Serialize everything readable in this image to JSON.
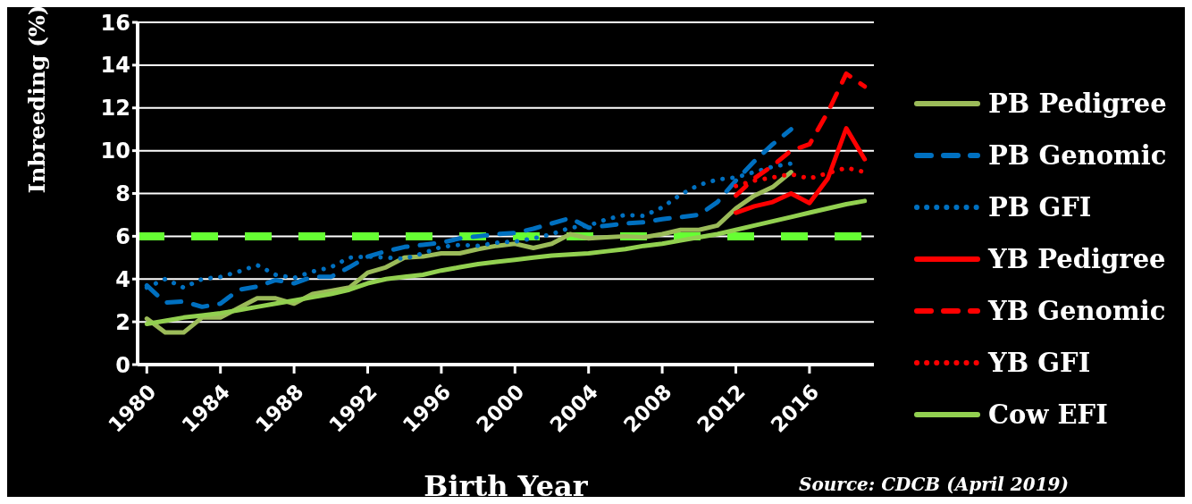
{
  "chart_data": {
    "type": "line",
    "xlabel": "Birth Year",
    "ylabel": "Inbreeding (%)",
    "annotations": [
      "Source: CDCB (April 2019)"
    ],
    "x": [
      1980,
      1981,
      1982,
      1983,
      1984,
      1985,
      1986,
      1987,
      1988,
      1989,
      1990,
      1991,
      1992,
      1993,
      1994,
      1995,
      1996,
      1997,
      1998,
      1999,
      2000,
      2001,
      2002,
      2003,
      2004,
      2005,
      2006,
      2007,
      2008,
      2009,
      2010,
      2011,
      2012,
      2013,
      2014,
      2015,
      2016,
      2017,
      2018,
      2019
    ],
    "xlim": [
      1979.5,
      2019.5
    ],
    "xticks": [
      1980,
      1984,
      1988,
      1992,
      1996,
      2000,
      2004,
      2008,
      2012,
      2016
    ],
    "ylim": [
      0,
      16
    ],
    "yticks": [
      0,
      2,
      4,
      6,
      8,
      10,
      12,
      14,
      16
    ],
    "grid": "y",
    "legend": "right",
    "marker": "none",
    "ref_lines": [
      {
        "axis": "y",
        "value": 6,
        "color": "#66ff33",
        "line_style": "dashed"
      }
    ],
    "series": [
      {
        "name": "PB Pedigree",
        "color": "#9bbb59",
        "line_style": "solid",
        "values": [
          2.15,
          1.5,
          1.5,
          2.2,
          2.2,
          2.65,
          3.1,
          3.1,
          2.85,
          3.3,
          3.45,
          3.6,
          4.3,
          4.55,
          5.0,
          5.05,
          5.2,
          5.2,
          5.4,
          5.55,
          5.65,
          5.45,
          5.65,
          6.1,
          5.9,
          5.95,
          6.0,
          5.95,
          6.1,
          6.3,
          6.3,
          6.5,
          7.3,
          7.9,
          8.3,
          9.0,
          null,
          null,
          null,
          null
        ]
      },
      {
        "name": "PB Genomic",
        "color": "#0070c0",
        "line_style": "dashed",
        "values": [
          3.7,
          2.9,
          2.95,
          2.7,
          2.85,
          3.5,
          3.65,
          3.95,
          3.8,
          4.1,
          4.1,
          4.55,
          5.05,
          5.3,
          5.5,
          5.6,
          5.7,
          5.9,
          6.0,
          6.1,
          6.15,
          6.35,
          6.6,
          6.85,
          6.4,
          6.5,
          6.6,
          6.65,
          6.8,
          6.9,
          7.0,
          7.6,
          8.6,
          9.5,
          10.3,
          11.0,
          null,
          null,
          null,
          null
        ]
      },
      {
        "name": "PB GFI",
        "color": "#0070c0",
        "line_style": "dotted",
        "values": [
          3.6,
          4.0,
          3.6,
          4.0,
          4.1,
          4.35,
          4.65,
          4.2,
          4.05,
          4.35,
          4.55,
          5.0,
          5.05,
          5.0,
          4.95,
          5.2,
          5.5,
          5.6,
          5.55,
          5.7,
          5.75,
          5.9,
          6.1,
          6.4,
          6.5,
          6.8,
          7.0,
          6.95,
          7.35,
          7.95,
          8.4,
          8.65,
          8.75,
          9.0,
          9.25,
          9.4,
          null,
          null,
          null,
          null
        ]
      },
      {
        "name": "YB Pedigree",
        "color": "#ff0000",
        "line_style": "solid",
        "values": [
          null,
          null,
          null,
          null,
          null,
          null,
          null,
          null,
          null,
          null,
          null,
          null,
          null,
          null,
          null,
          null,
          null,
          null,
          null,
          null,
          null,
          null,
          null,
          null,
          null,
          null,
          null,
          null,
          null,
          null,
          null,
          null,
          7.1,
          7.4,
          7.6,
          8.0,
          7.55,
          8.7,
          11.05,
          9.6
        ]
      },
      {
        "name": "YB Genomic",
        "color": "#ff0000",
        "line_style": "dashed",
        "values": [
          null,
          null,
          null,
          null,
          null,
          null,
          null,
          null,
          null,
          null,
          null,
          null,
          null,
          null,
          null,
          null,
          null,
          null,
          null,
          null,
          null,
          null,
          null,
          null,
          null,
          null,
          null,
          null,
          null,
          null,
          null,
          null,
          7.9,
          8.7,
          9.3,
          10.0,
          10.3,
          11.8,
          13.6,
          13.0
        ]
      },
      {
        "name": "YB GFI",
        "color": "#ff0000",
        "line_style": "dotted",
        "values": [
          null,
          null,
          null,
          null,
          null,
          null,
          null,
          null,
          null,
          null,
          null,
          null,
          null,
          null,
          null,
          null,
          null,
          null,
          null,
          null,
          null,
          null,
          null,
          null,
          null,
          null,
          null,
          null,
          null,
          null,
          null,
          null,
          8.35,
          8.6,
          8.75,
          8.9,
          8.7,
          8.95,
          9.2,
          9.0
        ]
      },
      {
        "name": "Cow EFI",
        "color": "#92d050",
        "line_style": "solid",
        "values": [
          1.9,
          2.05,
          2.2,
          2.3,
          2.4,
          2.55,
          2.7,
          2.85,
          3.0,
          3.15,
          3.3,
          3.5,
          3.8,
          4.0,
          4.1,
          4.2,
          4.4,
          4.55,
          4.7,
          4.8,
          4.9,
          5.0,
          5.1,
          5.15,
          5.2,
          5.3,
          5.4,
          5.55,
          5.65,
          5.8,
          5.95,
          6.1,
          6.3,
          6.5,
          6.7,
          6.9,
          7.1,
          7.3,
          7.5,
          7.65
        ]
      }
    ]
  }
}
